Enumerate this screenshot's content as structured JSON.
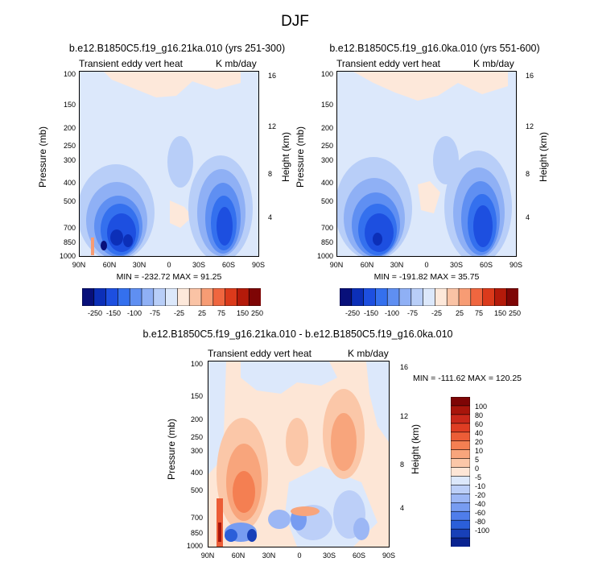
{
  "page": {
    "title": "DJF"
  },
  "panels": [
    {
      "title": "b.e12.B1850C5.f19_g16.21ka.010 (yrs 251-300)",
      "left_label": "Transient eddy vert heat",
      "right_label": "K mb/day",
      "ylabel": "Pressure (mb)",
      "ylabel_right": "Height (km)",
      "stats_text": "MIN = -232.72   MAX = 91.25"
    },
    {
      "title": "b.e12.B1850C5.f19_g16.0ka.010 (yrs 551-600)",
      "left_label": "Transient eddy vert heat",
      "right_label": "K mb/day",
      "ylabel": "Pressure (mb)",
      "ylabel_right": "Height (km)",
      "stats_text": "MIN = -191.82   MAX = 35.75"
    },
    {
      "title": "b.e12.B1850C5.f19_g16.21ka.010 - b.e12.B1850C5.f19_g16.0ka.010",
      "left_label": "Transient eddy vert heat",
      "right_label": "K mb/day",
      "ylabel": "Pressure (mb)",
      "ylabel_right": "Height (km)",
      "stats_text": "MIN = -111.62   MAX = 120.25"
    }
  ],
  "chart_data": [
    {
      "type": "heatmap",
      "title": "b.e12.B1850C5.f19_g16.21ka.010 (yrs 251-300)",
      "subtitle_left": "Transient eddy vert heat",
      "subtitle_right": "K mb/day",
      "xlabel": "",
      "ylabel": "Pressure (mb)",
      "ylabel_right": "Height (km)",
      "x_ticks": [
        "90N",
        "60N",
        "30N",
        "0",
        "30S",
        "60S",
        "90S"
      ],
      "x_range": [
        90,
        -90
      ],
      "y_ticks": [
        "100",
        "150",
        "200",
        "250",
        "300",
        "400",
        "500",
        "700",
        "850",
        "1000"
      ],
      "y_range_mb": [
        1000,
        100
      ],
      "right_ticks": [
        "4",
        "8",
        "12",
        "16"
      ],
      "min": -232.72,
      "max": 91.25,
      "colorbar_ticks": [
        "-250",
        "-150",
        "-100",
        "-75",
        "-25",
        "25",
        "75",
        "150",
        "250"
      ]
    },
    {
      "type": "heatmap",
      "title": "b.e12.B1850C5.f19_g16.0ka.010 (yrs 551-600)",
      "subtitle_left": "Transient eddy vert heat",
      "subtitle_right": "K mb/day",
      "xlabel": "",
      "ylabel": "Pressure (mb)",
      "ylabel_right": "Height (km)",
      "x_ticks": [
        "90N",
        "60N",
        "30N",
        "0",
        "30S",
        "60S",
        "90S"
      ],
      "x_range": [
        90,
        -90
      ],
      "y_ticks": [
        "100",
        "150",
        "200",
        "250",
        "300",
        "400",
        "500",
        "700",
        "850",
        "1000"
      ],
      "y_range_mb": [
        1000,
        100
      ],
      "right_ticks": [
        "4",
        "8",
        "12",
        "16"
      ],
      "min": -191.82,
      "max": 35.75,
      "colorbar_ticks": [
        "-250",
        "-150",
        "-100",
        "-75",
        "-25",
        "25",
        "75",
        "150",
        "250"
      ]
    },
    {
      "type": "heatmap",
      "title": "b.e12.B1850C5.f19_g16.21ka.010 - b.e12.B1850C5.f19_g16.0ka.010",
      "subtitle_left": "Transient eddy vert heat",
      "subtitle_right": "K mb/day",
      "xlabel": "",
      "ylabel": "Pressure (mb)",
      "ylabel_right": "Height (km)",
      "x_ticks": [
        "90N",
        "60N",
        "30N",
        "0",
        "30S",
        "60S",
        "90S"
      ],
      "x_range": [
        90,
        -90
      ],
      "y_ticks": [
        "100",
        "150",
        "200",
        "250",
        "300",
        "400",
        "500",
        "700",
        "850",
        "1000"
      ],
      "y_range_mb": [
        1000,
        100
      ],
      "right_ticks": [
        "4",
        "8",
        "12",
        "16"
      ],
      "min": -111.62,
      "max": 120.25,
      "colorbar_ticks": [
        "100",
        "80",
        "60",
        "40",
        "20",
        "10",
        "5",
        "0",
        "-5",
        "-10",
        "-20",
        "-40",
        "-60",
        "-80",
        "-100"
      ]
    }
  ],
  "colorbar_small": {
    "labels": [
      "-250",
      "-150",
      "-100",
      "-75",
      "-25",
      "25",
      "75",
      "150",
      "250"
    ],
    "colors": [
      "#08107a",
      "#0c2fb8",
      "#1d4fe0",
      "#3470ee",
      "#5f8ff2",
      "#8fb0f5",
      "#b8cef8",
      "#dce8fb",
      "#fde8da",
      "#fac3a5",
      "#f79c74",
      "#f0663f",
      "#db3a1b",
      "#b41a0a",
      "#7e0505"
    ]
  },
  "colorbar_diff": {
    "labels": [
      "100",
      "80",
      "60",
      "40",
      "20",
      "10",
      "5",
      "0",
      "-5",
      "-10",
      "-20",
      "-40",
      "-60",
      "-80",
      "-100"
    ],
    "colors": [
      "#7e0505",
      "#a8150b",
      "#c9281a",
      "#df3d23",
      "#ec5d37",
      "#f47f52",
      "#f8a57c",
      "#fbc7a8",
      "#fde6d6",
      "#dce8fb",
      "#bccff8",
      "#9cb7f5",
      "#779cf1",
      "#4f7deb",
      "#2b5fd9",
      "#1840b8",
      "#0a2390"
    ]
  }
}
